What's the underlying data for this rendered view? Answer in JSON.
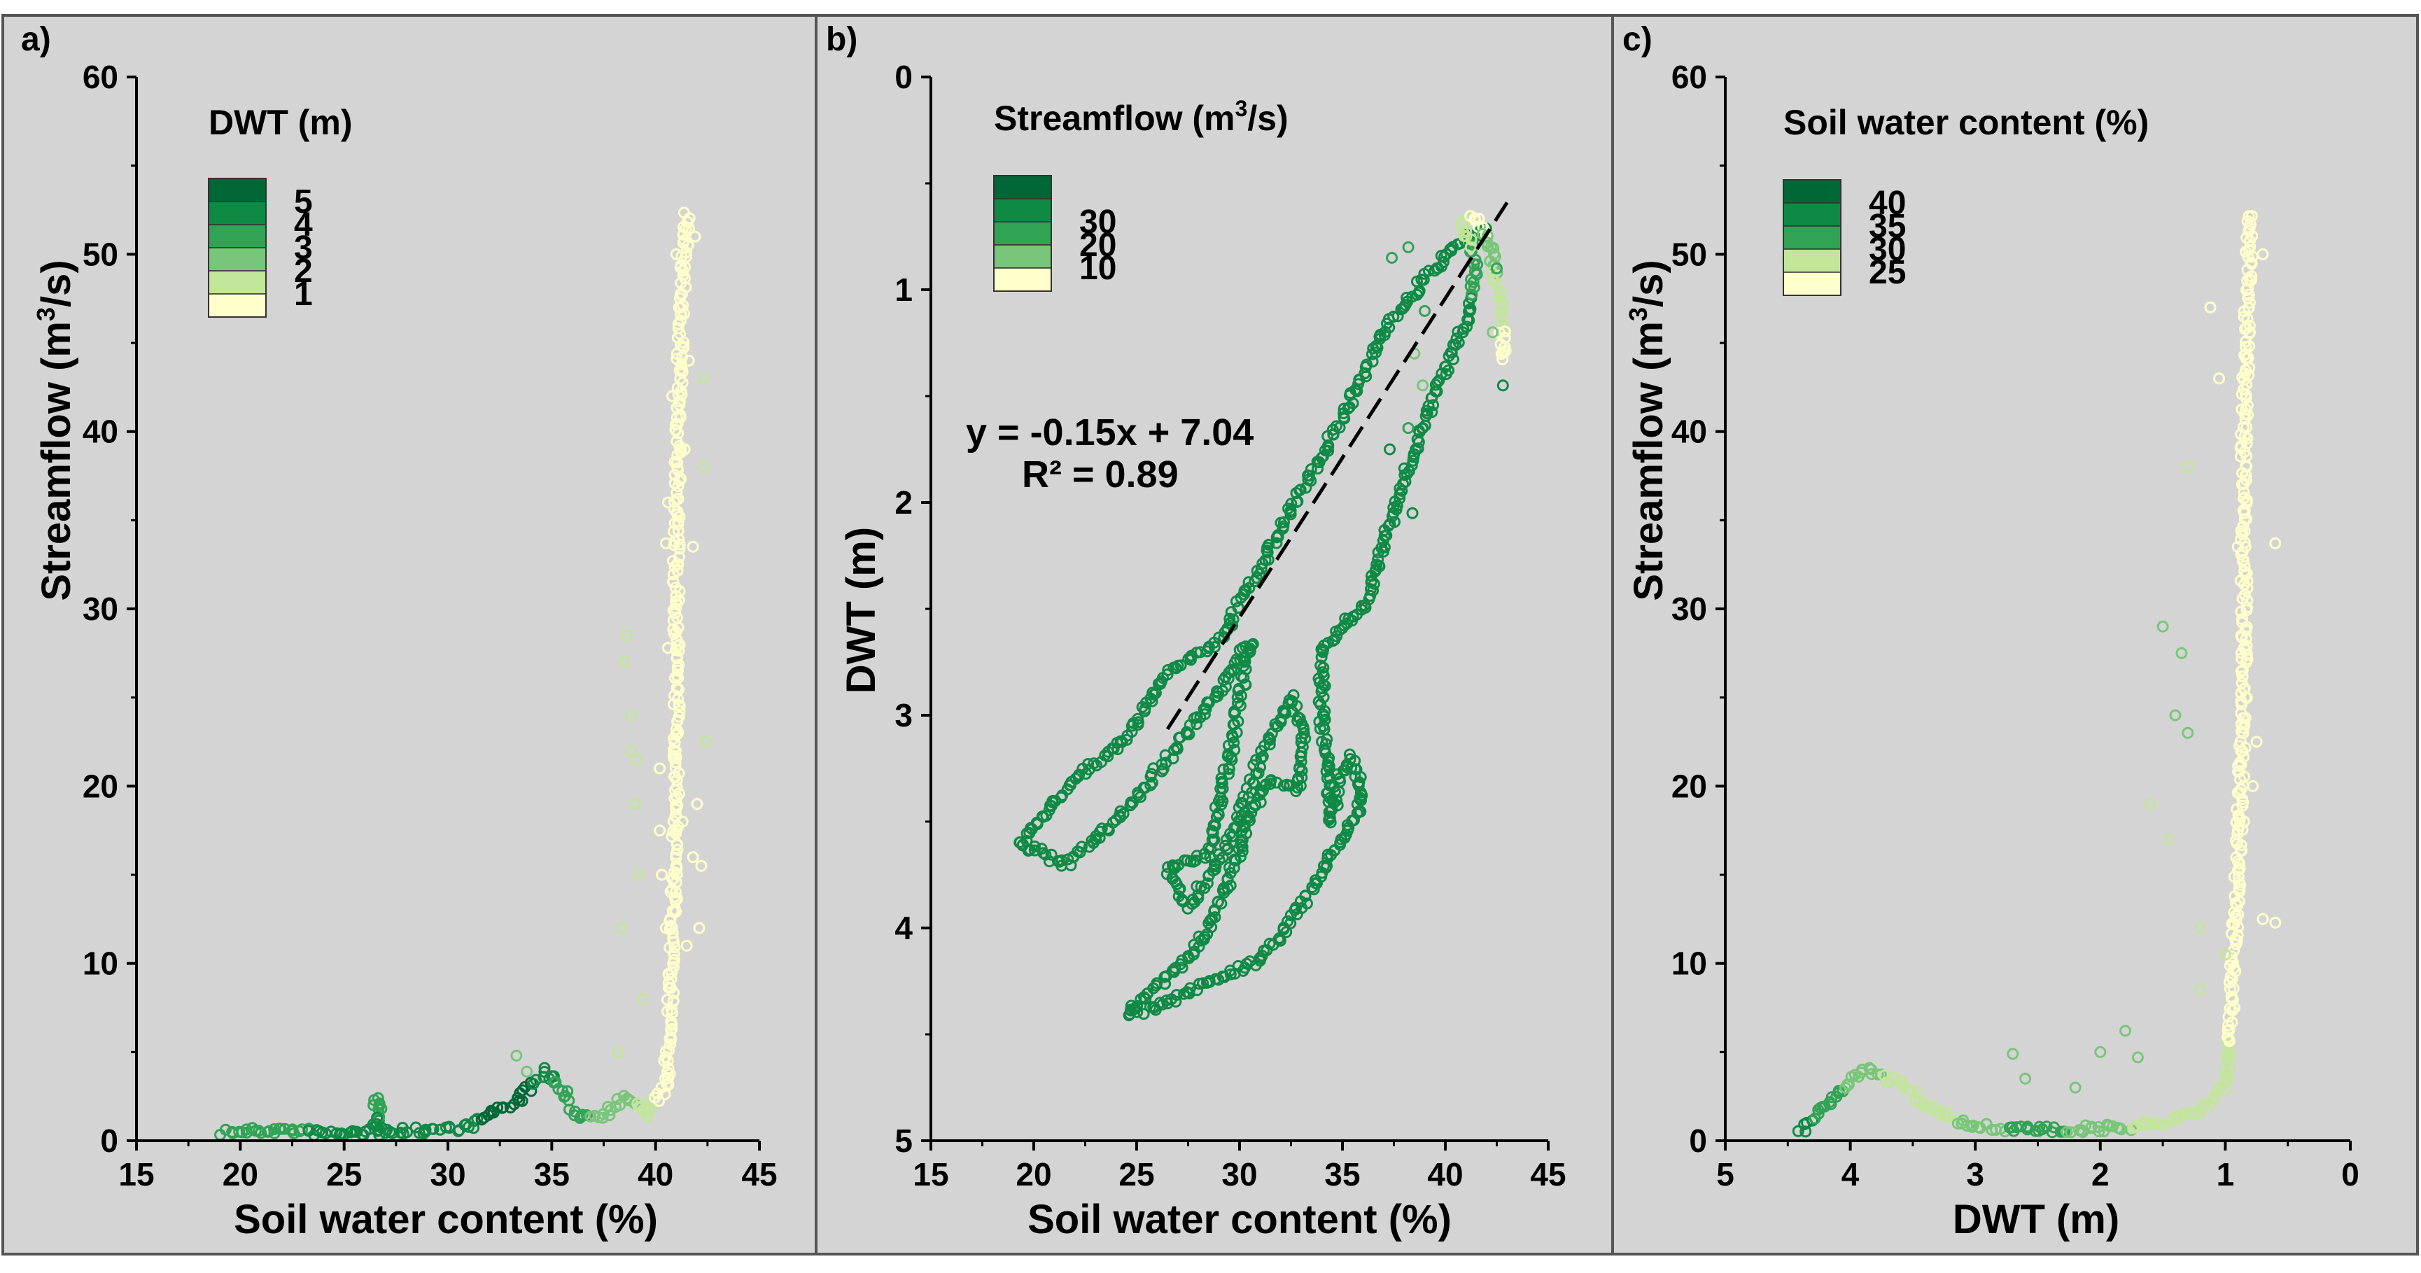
{
  "colors": {
    "background": "#d4d4d4",
    "frame": "#555555",
    "scale": [
      "#ffffcc",
      "#c2e699",
      "#78c679",
      "#31a354",
      "#0f8a45",
      "#006837"
    ],
    "fit_line": "#000000"
  },
  "chart_data": [
    {
      "id": "a",
      "type": "scatter",
      "panel_letter": "a)",
      "xlabel": "Soil water content (%)",
      "ylabel_parts": [
        "Streamflow (m",
        "3",
        "/s)"
      ],
      "xlim": [
        15,
        45
      ],
      "ylim": [
        0,
        60
      ],
      "x_ticks": [
        "15",
        "20",
        "25",
        "30",
        "35",
        "40",
        "45"
      ],
      "y_ticks": [
        "0",
        "10",
        "20",
        "30",
        "40",
        "50",
        "60"
      ],
      "color_by": "DWT",
      "legend": {
        "title": "DWT (m)",
        "entries": [
          "5",
          "4",
          "3",
          "2",
          "1"
        ],
        "colors": [
          "#006837",
          "#0f8a45",
          "#31a354",
          "#78c679",
          "#c2e699",
          "#ffffcc"
        ]
      },
      "series_path": [
        {
          "x": 19.2,
          "y": 0.5,
          "c": 3
        },
        {
          "x": 22,
          "y": 0.6,
          "c": 3
        },
        {
          "x": 24.5,
          "y": 0.4,
          "c": 4
        },
        {
          "x": 26.5,
          "y": 0.5,
          "c": 4
        },
        {
          "x": 26.6,
          "y": 2.3,
          "c": 3
        },
        {
          "x": 26.8,
          "y": 0.5,
          "c": 4
        },
        {
          "x": 29,
          "y": 0.6,
          "c": 4
        },
        {
          "x": 31,
          "y": 0.8,
          "c": 4
        },
        {
          "x": 32,
          "y": 1.5,
          "c": 5
        },
        {
          "x": 33.5,
          "y": 2.4,
          "c": 5
        },
        {
          "x": 34.8,
          "y": 4.0,
          "c": 4
        },
        {
          "x": 35.5,
          "y": 2.8,
          "c": 3
        },
        {
          "x": 36.2,
          "y": 1.4,
          "c": 3
        },
        {
          "x": 37.5,
          "y": 1.5,
          "c": 2
        },
        {
          "x": 38.5,
          "y": 2.5,
          "c": 2
        },
        {
          "x": 39.5,
          "y": 1.5,
          "c": 1
        },
        {
          "x": 40.5,
          "y": 3.0,
          "c": 0
        },
        {
          "x": 40.8,
          "y": 10,
          "c": 0
        },
        {
          "x": 41,
          "y": 20,
          "c": 0
        },
        {
          "x": 41,
          "y": 35,
          "c": 0
        },
        {
          "x": 41.2,
          "y": 45,
          "c": 0
        },
        {
          "x": 41.5,
          "y": 52.5,
          "c": 0
        }
      ],
      "series_scatter": [
        {
          "x": 38.5,
          "y": 27,
          "c": 1
        },
        {
          "x": 38.6,
          "y": 28.5,
          "c": 1
        },
        {
          "x": 38.8,
          "y": 22,
          "c": 1
        },
        {
          "x": 39,
          "y": 19,
          "c": 1
        },
        {
          "x": 39.2,
          "y": 15,
          "c": 1
        },
        {
          "x": 38.4,
          "y": 12,
          "c": 1
        },
        {
          "x": 39.4,
          "y": 8,
          "c": 1
        },
        {
          "x": 38.2,
          "y": 5,
          "c": 1
        },
        {
          "x": 33.3,
          "y": 4.8,
          "c": 2
        },
        {
          "x": 33.8,
          "y": 3.9,
          "c": 2
        },
        {
          "x": 38.8,
          "y": 24,
          "c": 1
        },
        {
          "x": 39.1,
          "y": 21.5,
          "c": 1
        },
        {
          "x": 41.2,
          "y": 47,
          "c": 0
        },
        {
          "x": 41.6,
          "y": 44,
          "c": 0
        },
        {
          "x": 41.0,
          "y": 50,
          "c": 0
        },
        {
          "x": 41.9,
          "y": 51,
          "c": 0
        },
        {
          "x": 40.8,
          "y": 42,
          "c": 0
        },
        {
          "x": 41.4,
          "y": 39,
          "c": 0
        },
        {
          "x": 40.6,
          "y": 36,
          "c": 0
        },
        {
          "x": 41.8,
          "y": 33.5,
          "c": 0
        },
        {
          "x": 40.5,
          "y": 33.7,
          "c": 0
        },
        {
          "x": 40.6,
          "y": 27.8,
          "c": 0
        },
        {
          "x": 42.3,
          "y": 43,
          "c": 1
        },
        {
          "x": 42.3,
          "y": 38,
          "c": 1
        },
        {
          "x": 40.2,
          "y": 21,
          "c": 0
        },
        {
          "x": 41.3,
          "y": 18,
          "c": 0
        },
        {
          "x": 41.8,
          "y": 16,
          "c": 0
        },
        {
          "x": 42.0,
          "y": 19,
          "c": 0
        },
        {
          "x": 42.2,
          "y": 15.5,
          "c": 0
        },
        {
          "x": 40.3,
          "y": 15,
          "c": 0
        },
        {
          "x": 42.4,
          "y": 22.5,
          "c": 1
        },
        {
          "x": 40.5,
          "y": 12,
          "c": 0
        },
        {
          "x": 42.1,
          "y": 12,
          "c": 0
        },
        {
          "x": 41.5,
          "y": 11,
          "c": 0
        },
        {
          "x": 40.2,
          "y": 17.5,
          "c": 0
        }
      ]
    },
    {
      "id": "b",
      "type": "scatter",
      "panel_letter": "b)",
      "xlabel": "Soil water content (%)",
      "ylabel": "DWT (m)",
      "xlim": [
        15,
        45
      ],
      "ylim": [
        0,
        5
      ],
      "y_inverted": true,
      "x_ticks": [
        "15",
        "20",
        "25",
        "30",
        "35",
        "40",
        "45"
      ],
      "y_ticks": [
        "0",
        "1",
        "2",
        "3",
        "4",
        "5"
      ],
      "color_by": "Streamflow",
      "legend": {
        "title_parts": [
          "Streamflow (m",
          "3",
          "/s)"
        ],
        "entries": [
          "30",
          "20",
          "10"
        ],
        "colors": [
          "#006837",
          "#0f8a45",
          "#31a354",
          "#78c679",
          "#ffffcc"
        ]
      },
      "fit": {
        "slope": -0.15,
        "intercept": 7.04,
        "x_range": [
          26.5,
          43
        ],
        "r2": 0.89
      },
      "equation": {
        "line1": "y = -0.15x + 7.04",
        "line2": "R² = 0.89"
      },
      "series_path": [
        {
          "x": 42,
          "y": 0.72,
          "c": 4
        },
        {
          "x": 41,
          "y": 0.75,
          "c": 4
        },
        {
          "x": 39,
          "y": 0.95,
          "c": 4
        },
        {
          "x": 37,
          "y": 1.2,
          "c": 4
        },
        {
          "x": 35,
          "y": 1.6,
          "c": 4
        },
        {
          "x": 33,
          "y": 1.95,
          "c": 4
        },
        {
          "x": 31,
          "y": 2.3,
          "c": 4
        },
        {
          "x": 29,
          "y": 2.65,
          "c": 4
        },
        {
          "x": 26.5,
          "y": 2.8,
          "c": 4
        },
        {
          "x": 24.5,
          "y": 3.1,
          "c": 4
        },
        {
          "x": 21.5,
          "y": 3.35,
          "c": 4
        },
        {
          "x": 19.3,
          "y": 3.6,
          "c": 4
        },
        {
          "x": 20.5,
          "y": 3.65,
          "c": 4
        },
        {
          "x": 21.5,
          "y": 3.7,
          "c": 4
        },
        {
          "x": 24,
          "y": 3.5,
          "c": 4
        },
        {
          "x": 26.5,
          "y": 3.2,
          "c": 4
        },
        {
          "x": 29,
          "y": 2.9,
          "c": 4
        },
        {
          "x": 30.5,
          "y": 2.65,
          "c": 4
        },
        {
          "x": 29.5,
          "y": 3.2,
          "c": 4
        },
        {
          "x": 28.5,
          "y": 3.65,
          "c": 4
        },
        {
          "x": 26.5,
          "y": 3.72,
          "c": 4
        },
        {
          "x": 27.5,
          "y": 3.9,
          "c": 4
        },
        {
          "x": 29.5,
          "y": 3.6,
          "c": 4
        },
        {
          "x": 31,
          "y": 3.2,
          "c": 4
        },
        {
          "x": 32.5,
          "y": 2.92,
          "c": 4
        },
        {
          "x": 33.2,
          "y": 3.1,
          "c": 4
        },
        {
          "x": 32.8,
          "y": 3.35,
          "c": 4
        },
        {
          "x": 31.5,
          "y": 3.3,
          "c": 4
        },
        {
          "x": 30.5,
          "y": 3.45,
          "c": 4
        },
        {
          "x": 30,
          "y": 3.65,
          "c": 4
        },
        {
          "x": 28.5,
          "y": 4.0,
          "c": 4
        },
        {
          "x": 27,
          "y": 4.2,
          "c": 4
        },
        {
          "x": 24.5,
          "y": 4.4,
          "c": 4
        },
        {
          "x": 26,
          "y": 4.38,
          "c": 4
        },
        {
          "x": 28.5,
          "y": 4.25,
          "c": 4
        },
        {
          "x": 31,
          "y": 4.15,
          "c": 4
        },
        {
          "x": 33,
          "y": 3.9,
          "c": 4
        },
        {
          "x": 35.5,
          "y": 3.5,
          "c": 4
        },
        {
          "x": 36,
          "y": 3.4,
          "c": 4
        },
        {
          "x": 35.5,
          "y": 3.2,
          "c": 4
        },
        {
          "x": 34.8,
          "y": 3.3,
          "c": 4
        },
        {
          "x": 34.5,
          "y": 3.5,
          "c": 4
        },
        {
          "x": 34,
          "y": 3.0,
          "c": 4
        },
        {
          "x": 34,
          "y": 2.7,
          "c": 4
        },
        {
          "x": 35.2,
          "y": 2.55,
          "c": 4
        },
        {
          "x": 36,
          "y": 2.5,
          "c": 4
        },
        {
          "x": 37,
          "y": 2.2,
          "c": 4
        },
        {
          "x": 38,
          "y": 1.9,
          "c": 4
        },
        {
          "x": 39.5,
          "y": 1.5,
          "c": 4
        },
        {
          "x": 41,
          "y": 1.15,
          "c": 4
        },
        {
          "x": 41.5,
          "y": 0.9,
          "c": 3
        },
        {
          "x": 40.8,
          "y": 0.68,
          "c": 1
        },
        {
          "x": 41.5,
          "y": 0.66,
          "c": 0
        },
        {
          "x": 42.2,
          "y": 0.8,
          "c": 2
        },
        {
          "x": 42.6,
          "y": 1.05,
          "c": 1
        },
        {
          "x": 42.9,
          "y": 1.35,
          "c": 0
        }
      ],
      "series_scatter": [
        {
          "x": 38.5,
          "y": 1.3,
          "c": 2
        },
        {
          "x": 38.9,
          "y": 1.45,
          "c": 2
        },
        {
          "x": 38.2,
          "y": 1.65,
          "c": 3
        },
        {
          "x": 39,
          "y": 1.1,
          "c": 3
        },
        {
          "x": 38.2,
          "y": 0.8,
          "c": 3
        },
        {
          "x": 37.4,
          "y": 0.85,
          "c": 3
        },
        {
          "x": 42.5,
          "y": 0.9,
          "c": 3
        },
        {
          "x": 42.3,
          "y": 1.2,
          "c": 2
        },
        {
          "x": 42.8,
          "y": 1.45,
          "c": 4
        },
        {
          "x": 38.4,
          "y": 2.05,
          "c": 4
        },
        {
          "x": 37.3,
          "y": 1.75,
          "c": 4
        },
        {
          "x": 36.8,
          "y": 2.3,
          "c": 4
        }
      ]
    },
    {
      "id": "c",
      "type": "scatter",
      "panel_letter": "c)",
      "xlabel": "DWT (m)",
      "ylabel_parts": [
        "Streamflow (m",
        "3",
        "/s)"
      ],
      "xlim": [
        5,
        0
      ],
      "ylim": [
        0,
        60
      ],
      "x_inverted": true,
      "x_ticks": [
        "5",
        "4",
        "3",
        "2",
        "1",
        "0"
      ],
      "y_ticks": [
        "0",
        "10",
        "20",
        "30",
        "40",
        "50",
        "60"
      ],
      "color_by": "Soil water content",
      "legend": {
        "title": "Soil water content (%)",
        "entries": [
          "40",
          "35",
          "30",
          "25"
        ],
        "colors": [
          "#006837",
          "#0f8a45",
          "#31a354",
          "#c2e699",
          "#ffffcc"
        ]
      },
      "series_path": [
        {
          "x": 4.4,
          "y": 0.5,
          "c": 4
        },
        {
          "x": 4.2,
          "y": 2.0,
          "c": 3
        },
        {
          "x": 3.9,
          "y": 4.0,
          "c": 2
        },
        {
          "x": 3.6,
          "y": 3.2,
          "c": 1
        },
        {
          "x": 3.3,
          "y": 1.6,
          "c": 1
        },
        {
          "x": 3.0,
          "y": 0.8,
          "c": 2
        },
        {
          "x": 2.5,
          "y": 0.6,
          "c": 3
        },
        {
          "x": 2.0,
          "y": 0.7,
          "c": 2
        },
        {
          "x": 1.5,
          "y": 0.9,
          "c": 1
        },
        {
          "x": 1.2,
          "y": 1.8,
          "c": 1
        },
        {
          "x": 1.0,
          "y": 3.0,
          "c": 1
        },
        {
          "x": 0.95,
          "y": 8,
          "c": 0
        },
        {
          "x": 0.9,
          "y": 15,
          "c": 0
        },
        {
          "x": 0.85,
          "y": 25,
          "c": 0
        },
        {
          "x": 0.85,
          "y": 40,
          "c": 0
        },
        {
          "x": 0.8,
          "y": 52.5,
          "c": 0
        }
      ],
      "series_scatter": [
        {
          "x": 1.5,
          "y": 29,
          "c": 2
        },
        {
          "x": 1.35,
          "y": 27.5,
          "c": 2
        },
        {
          "x": 1.4,
          "y": 24,
          "c": 2
        },
        {
          "x": 1.3,
          "y": 23,
          "c": 2
        },
        {
          "x": 1.6,
          "y": 19,
          "c": 1
        },
        {
          "x": 1.45,
          "y": 17,
          "c": 1
        },
        {
          "x": 1.2,
          "y": 12,
          "c": 1
        },
        {
          "x": 1.05,
          "y": 43,
          "c": 0
        },
        {
          "x": 1.3,
          "y": 38,
          "c": 1
        },
        {
          "x": 1.12,
          "y": 47,
          "c": 0
        },
        {
          "x": 0.7,
          "y": 50,
          "c": 0
        },
        {
          "x": 0.6,
          "y": 33.7,
          "c": 0
        },
        {
          "x": 0.9,
          "y": 33.5,
          "c": 0
        },
        {
          "x": 0.85,
          "y": 27.8,
          "c": 0
        },
        {
          "x": 0.75,
          "y": 22.5,
          "c": 0
        },
        {
          "x": 0.7,
          "y": 12.5,
          "c": 0
        },
        {
          "x": 0.6,
          "y": 12.3,
          "c": 0
        },
        {
          "x": 1.0,
          "y": 10.5,
          "c": 1
        },
        {
          "x": 2.7,
          "y": 4.9,
          "c": 2
        },
        {
          "x": 2.6,
          "y": 3.5,
          "c": 2
        },
        {
          "x": 1.8,
          "y": 6.2,
          "c": 2
        },
        {
          "x": 2.0,
          "y": 5.0,
          "c": 2
        },
        {
          "x": 1.7,
          "y": 4.7,
          "c": 2
        },
        {
          "x": 2.2,
          "y": 3.0,
          "c": 2
        },
        {
          "x": 0.85,
          "y": 18,
          "c": 0
        },
        {
          "x": 0.78,
          "y": 20,
          "c": 0
        },
        {
          "x": 1.2,
          "y": 8.5,
          "c": 1
        }
      ]
    }
  ]
}
